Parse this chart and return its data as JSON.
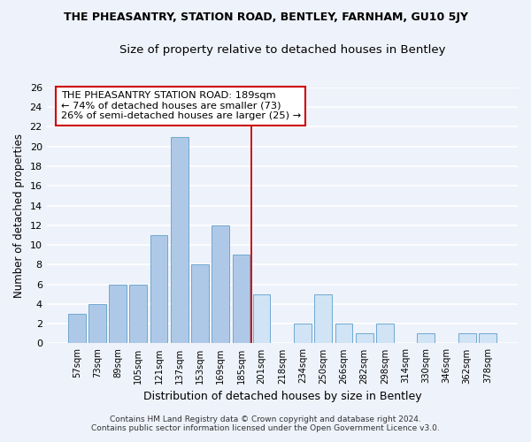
{
  "title": "THE PHEASANTRY, STATION ROAD, BENTLEY, FARNHAM, GU10 5JY",
  "subtitle": "Size of property relative to detached houses in Bentley",
  "xlabel": "Distribution of detached houses by size in Bentley",
  "ylabel": "Number of detached properties",
  "categories": [
    "57sqm",
    "73sqm",
    "89sqm",
    "105sqm",
    "121sqm",
    "137sqm",
    "153sqm",
    "169sqm",
    "185sqm",
    "201sqm",
    "218sqm",
    "234sqm",
    "250sqm",
    "266sqm",
    "282sqm",
    "298sqm",
    "314sqm",
    "330sqm",
    "346sqm",
    "362sqm",
    "378sqm"
  ],
  "values": [
    3,
    4,
    6,
    6,
    11,
    21,
    8,
    12,
    9,
    5,
    0,
    2,
    5,
    2,
    1,
    2,
    0,
    1,
    0,
    1,
    1
  ],
  "bar_colors_left": "#aec9e8",
  "bar_colors_right": "#d0e4f5",
  "ref_line_index": 8.5,
  "annotation_text_line1": "THE PHEASANTRY STATION ROAD: 189sqm",
  "annotation_text_line2": "← 74% of detached houses are smaller (73)",
  "annotation_text_line3": "26% of semi-detached houses are larger (25) →",
  "annotation_box_color": "#ffffff",
  "annotation_box_edge": "#cc0000",
  "ref_line_color": "#cc0000",
  "ylim": [
    0,
    26
  ],
  "yticks": [
    0,
    2,
    4,
    6,
    8,
    10,
    12,
    14,
    16,
    18,
    20,
    22,
    24,
    26
  ],
  "footer1": "Contains HM Land Registry data © Crown copyright and database right 2024.",
  "footer2": "Contains public sector information licensed under the Open Government Licence v3.0.",
  "bg_color": "#eef2fa",
  "grid_color": "#ffffff",
  "bar_edge_color": "#6fa8d0",
  "split_index": 9
}
